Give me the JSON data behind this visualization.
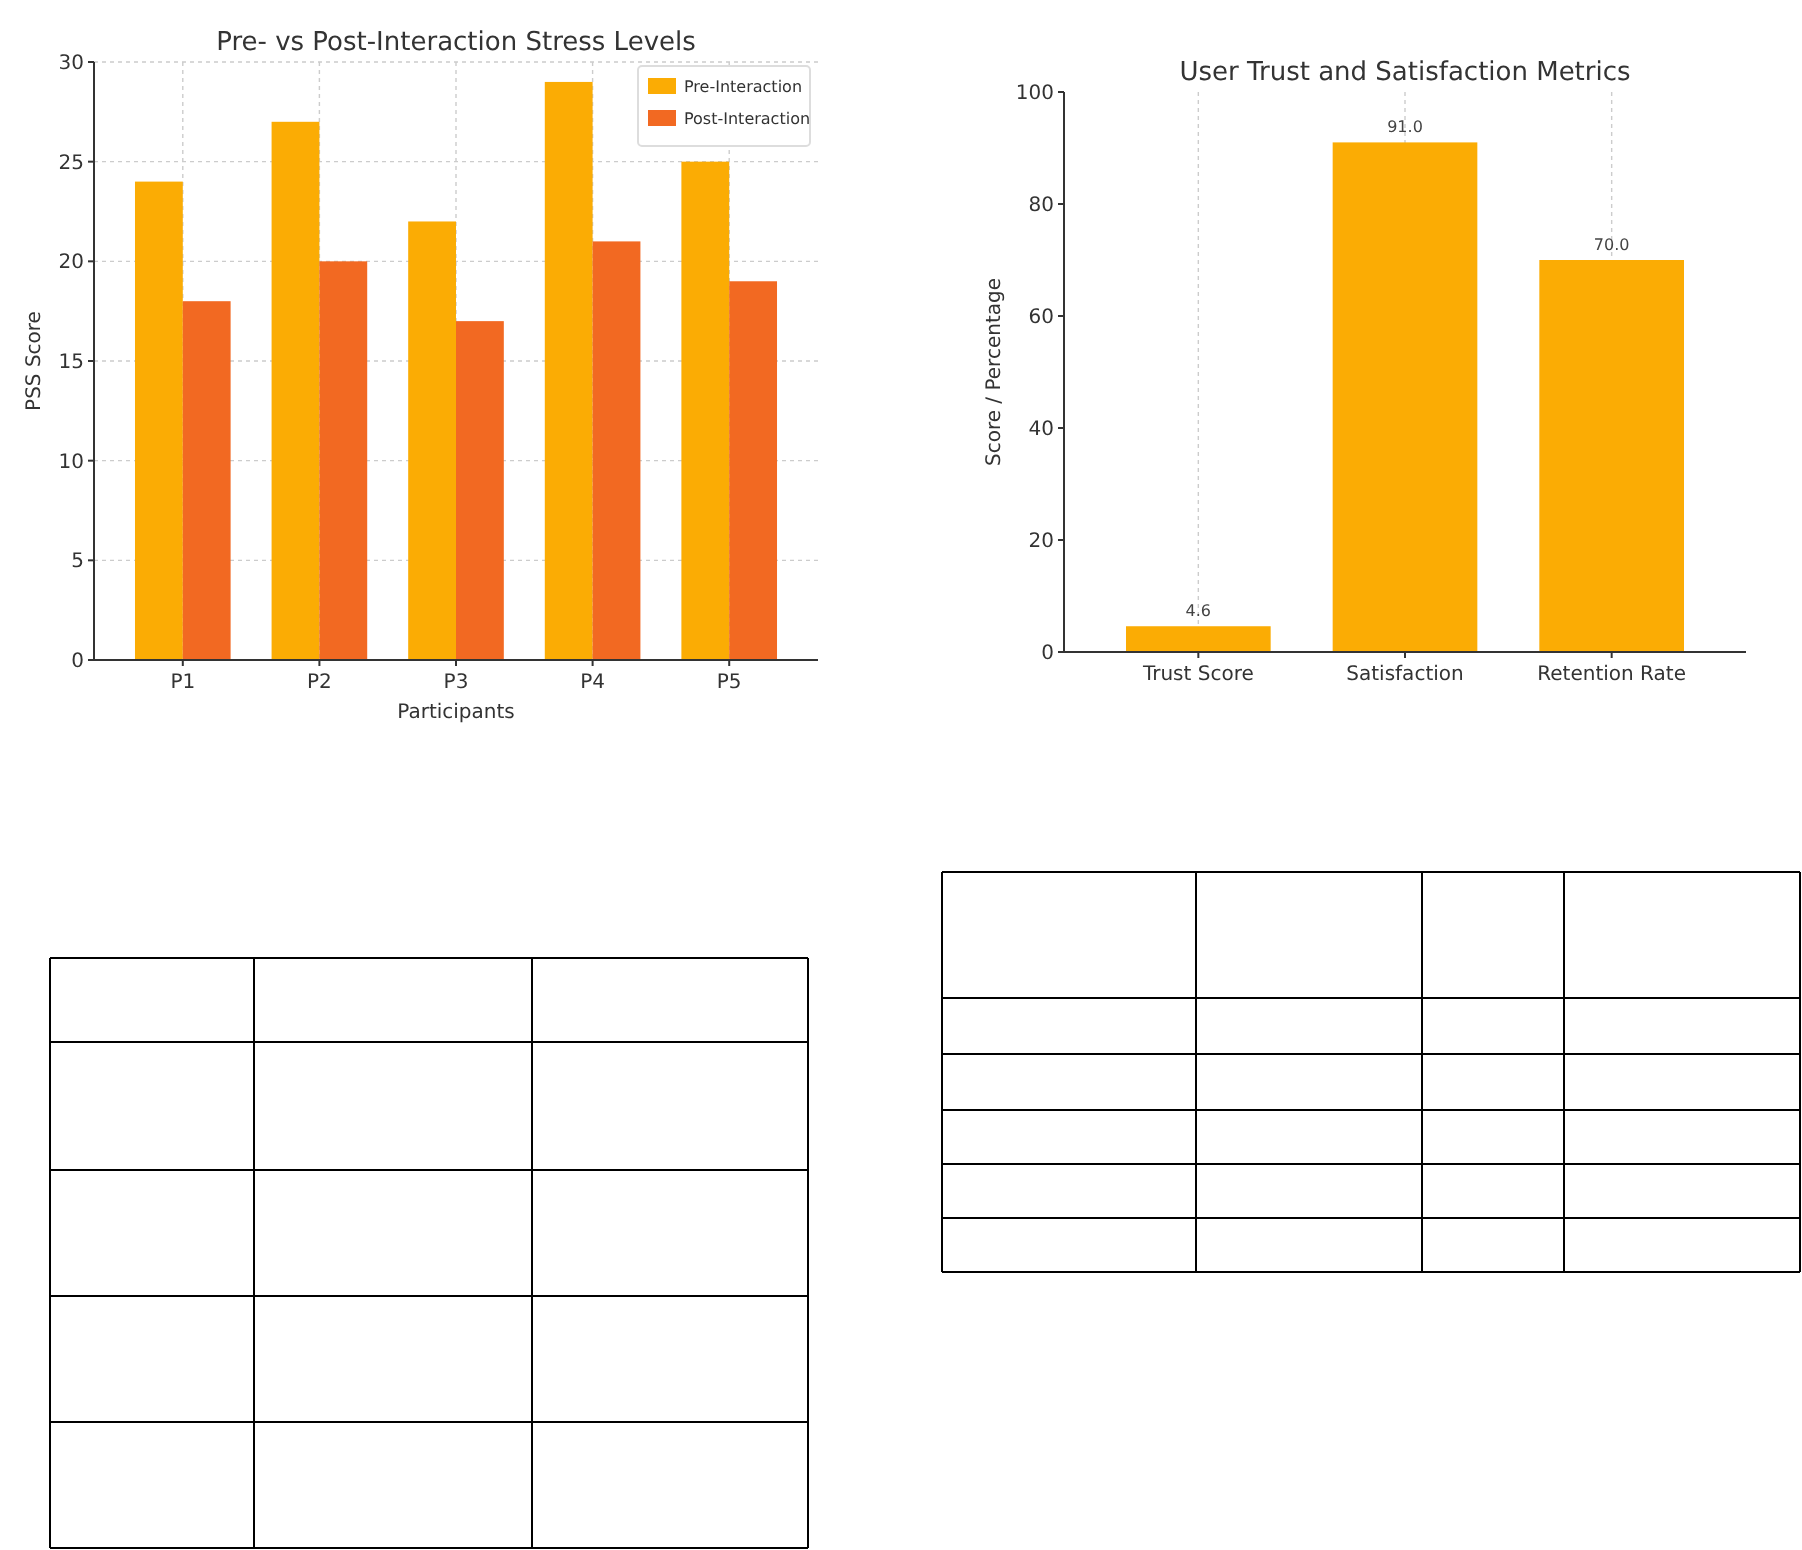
{
  "chart_data": [
    {
      "type": "bar",
      "title": "Pre- vs Post-Interaction Stress Levels",
      "xlabel": "Participants",
      "ylabel": "PSS Score",
      "categories": [
        "P1",
        "P2",
        "P3",
        "P4",
        "P5"
      ],
      "series": [
        {
          "name": "Pre-Interaction",
          "color": "#fbac04",
          "values": [
            24,
            27,
            22,
            29,
            25
          ]
        },
        {
          "name": "Post-Interaction",
          "color": "#f26922",
          "values": [
            18,
            20,
            17,
            21,
            19
          ]
        }
      ],
      "ylim": [
        0,
        30
      ],
      "yticks": [
        0,
        5,
        10,
        15,
        20,
        25,
        30
      ],
      "grid": true,
      "legend": "top right"
    },
    {
      "type": "bar",
      "title": "User Trust and Satisfaction Metrics",
      "ylabel": "Score / Percentage",
      "categories": [
        "Trust Score",
        "Satisfaction",
        "Retention Rate"
      ],
      "values": [
        4.6,
        91,
        70
      ],
      "color": "#fbac04",
      "value_labels": [
        "4.6",
        "91.0",
        "70.0"
      ],
      "ylim": [
        0,
        100
      ],
      "yticks": [
        0,
        20,
        40,
        60,
        80,
        100
      ],
      "grid": "x"
    }
  ]
}
